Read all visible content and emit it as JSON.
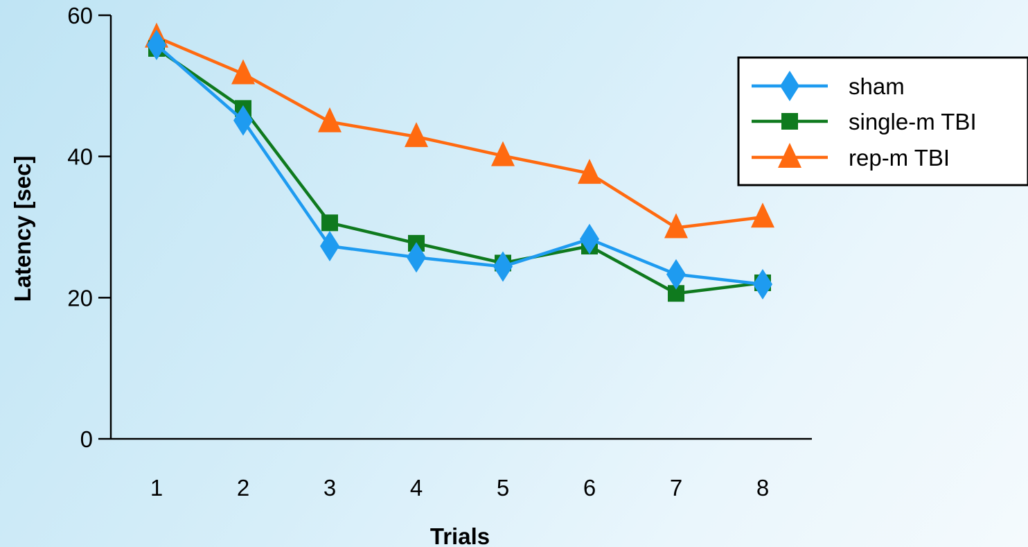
{
  "chart_data": {
    "type": "line",
    "title": "",
    "xlabel": "Trials",
    "ylabel": "Latency [sec]",
    "categories": [
      "1",
      "2",
      "3",
      "4",
      "5",
      "6",
      "7",
      "8"
    ],
    "ylim": [
      0,
      60
    ],
    "yticks": [
      "0",
      "20",
      "40",
      "60"
    ],
    "grid": false,
    "legend_position": "top-right",
    "series": [
      {
        "name": "sham",
        "color": "#1e9bf0",
        "marker": "diamond",
        "values": [
          55.8,
          45.1,
          27.3,
          25.7,
          24.4,
          28.3,
          23.3,
          21.9
        ]
      },
      {
        "name": "single-m TBI",
        "color": "#0f7a1e",
        "marker": "square",
        "values": [
          55.3,
          46.8,
          30.6,
          27.7,
          24.9,
          27.3,
          20.6,
          22.1
        ]
      },
      {
        "name": "rep-m TBI",
        "color": "#ff6a10",
        "marker": "triangle",
        "values": [
          56.9,
          51.7,
          44.9,
          42.8,
          40.1,
          37.6,
          29.9,
          31.4
        ]
      }
    ]
  }
}
